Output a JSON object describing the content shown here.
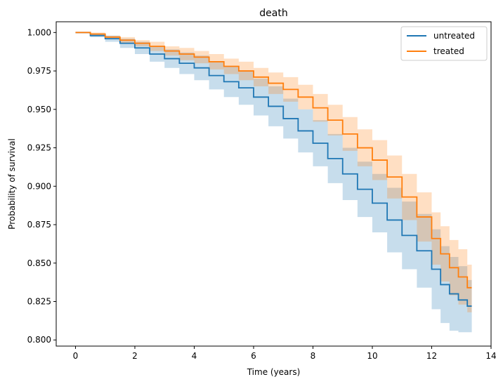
{
  "chart_data": {
    "type": "line",
    "title": "death",
    "xlabel": "Time (years)",
    "ylabel": "Probability of survival",
    "xlim": [
      -0.65,
      14.0
    ],
    "ylim": [
      0.796,
      1.007
    ],
    "xticks": [
      0,
      2,
      4,
      6,
      8,
      10,
      12,
      14
    ],
    "xtick_labels": [
      "0",
      "2",
      "4",
      "6",
      "8",
      "10",
      "12",
      "14"
    ],
    "yticks": [
      0.8,
      0.825,
      0.85,
      0.875,
      0.9,
      0.925,
      0.95,
      0.975,
      1.0
    ],
    "ytick_labels": [
      "0.800",
      "0.825",
      "0.850",
      "0.875",
      "0.900",
      "0.925",
      "0.950",
      "0.975",
      "1.000"
    ],
    "grid": false,
    "legend_position": "top-right",
    "series": [
      {
        "name": "untreated",
        "color": "#1f77b4",
        "x": [
          0,
          0.5,
          1.0,
          1.5,
          2.0,
          2.5,
          3.0,
          3.5,
          4.0,
          4.5,
          5.0,
          5.5,
          6.0,
          6.5,
          7.0,
          7.5,
          8.0,
          8.5,
          9.0,
          9.5,
          10.0,
          10.5,
          11.0,
          11.5,
          12.0,
          12.3,
          12.6,
          12.9,
          13.2,
          13.35
        ],
        "y": [
          1.0,
          0.998,
          0.996,
          0.993,
          0.99,
          0.986,
          0.983,
          0.98,
          0.977,
          0.972,
          0.968,
          0.964,
          0.958,
          0.952,
          0.944,
          0.936,
          0.928,
          0.918,
          0.908,
          0.898,
          0.889,
          0.878,
          0.868,
          0.858,
          0.846,
          0.836,
          0.83,
          0.826,
          0.822,
          0.822
        ],
        "lower": [
          1.0,
          0.997,
          0.994,
          0.99,
          0.986,
          0.981,
          0.977,
          0.973,
          0.969,
          0.963,
          0.958,
          0.953,
          0.946,
          0.939,
          0.931,
          0.922,
          0.913,
          0.902,
          0.891,
          0.88,
          0.87,
          0.857,
          0.846,
          0.834,
          0.82,
          0.811,
          0.806,
          0.805,
          0.805,
          0.805
        ],
        "upper": [
          1.0,
          0.999,
          0.998,
          0.996,
          0.994,
          0.991,
          0.989,
          0.987,
          0.985,
          0.981,
          0.978,
          0.975,
          0.97,
          0.965,
          0.957,
          0.95,
          0.943,
          0.934,
          0.925,
          0.916,
          0.908,
          0.899,
          0.89,
          0.882,
          0.872,
          0.861,
          0.854,
          0.848,
          0.839,
          0.839
        ]
      },
      {
        "name": "treated",
        "color": "#ff7f0e",
        "x": [
          0,
          0.5,
          1.0,
          1.5,
          2.0,
          2.5,
          3.0,
          3.5,
          4.0,
          4.5,
          5.0,
          5.5,
          6.0,
          6.5,
          7.0,
          7.5,
          8.0,
          8.5,
          9.0,
          9.5,
          10.0,
          10.5,
          11.0,
          11.5,
          12.0,
          12.3,
          12.6,
          12.9,
          13.2,
          13.35
        ],
        "y": [
          1.0,
          0.999,
          0.997,
          0.995,
          0.993,
          0.991,
          0.988,
          0.986,
          0.984,
          0.981,
          0.978,
          0.975,
          0.971,
          0.967,
          0.963,
          0.958,
          0.951,
          0.943,
          0.934,
          0.925,
          0.917,
          0.906,
          0.893,
          0.88,
          0.866,
          0.856,
          0.847,
          0.841,
          0.834,
          0.834
        ],
        "lower": [
          1.0,
          0.998,
          0.996,
          0.993,
          0.991,
          0.988,
          0.985,
          0.982,
          0.98,
          0.976,
          0.973,
          0.969,
          0.965,
          0.96,
          0.955,
          0.95,
          0.942,
          0.933,
          0.923,
          0.913,
          0.904,
          0.892,
          0.878,
          0.864,
          0.849,
          0.838,
          0.829,
          0.823,
          0.818,
          0.818
        ],
        "upper": [
          1.0,
          1.0,
          0.998,
          0.997,
          0.995,
          0.994,
          0.991,
          0.99,
          0.988,
          0.986,
          0.983,
          0.981,
          0.977,
          0.974,
          0.971,
          0.966,
          0.96,
          0.953,
          0.945,
          0.937,
          0.93,
          0.92,
          0.908,
          0.896,
          0.883,
          0.874,
          0.865,
          0.859,
          0.849,
          0.849
        ]
      }
    ]
  }
}
